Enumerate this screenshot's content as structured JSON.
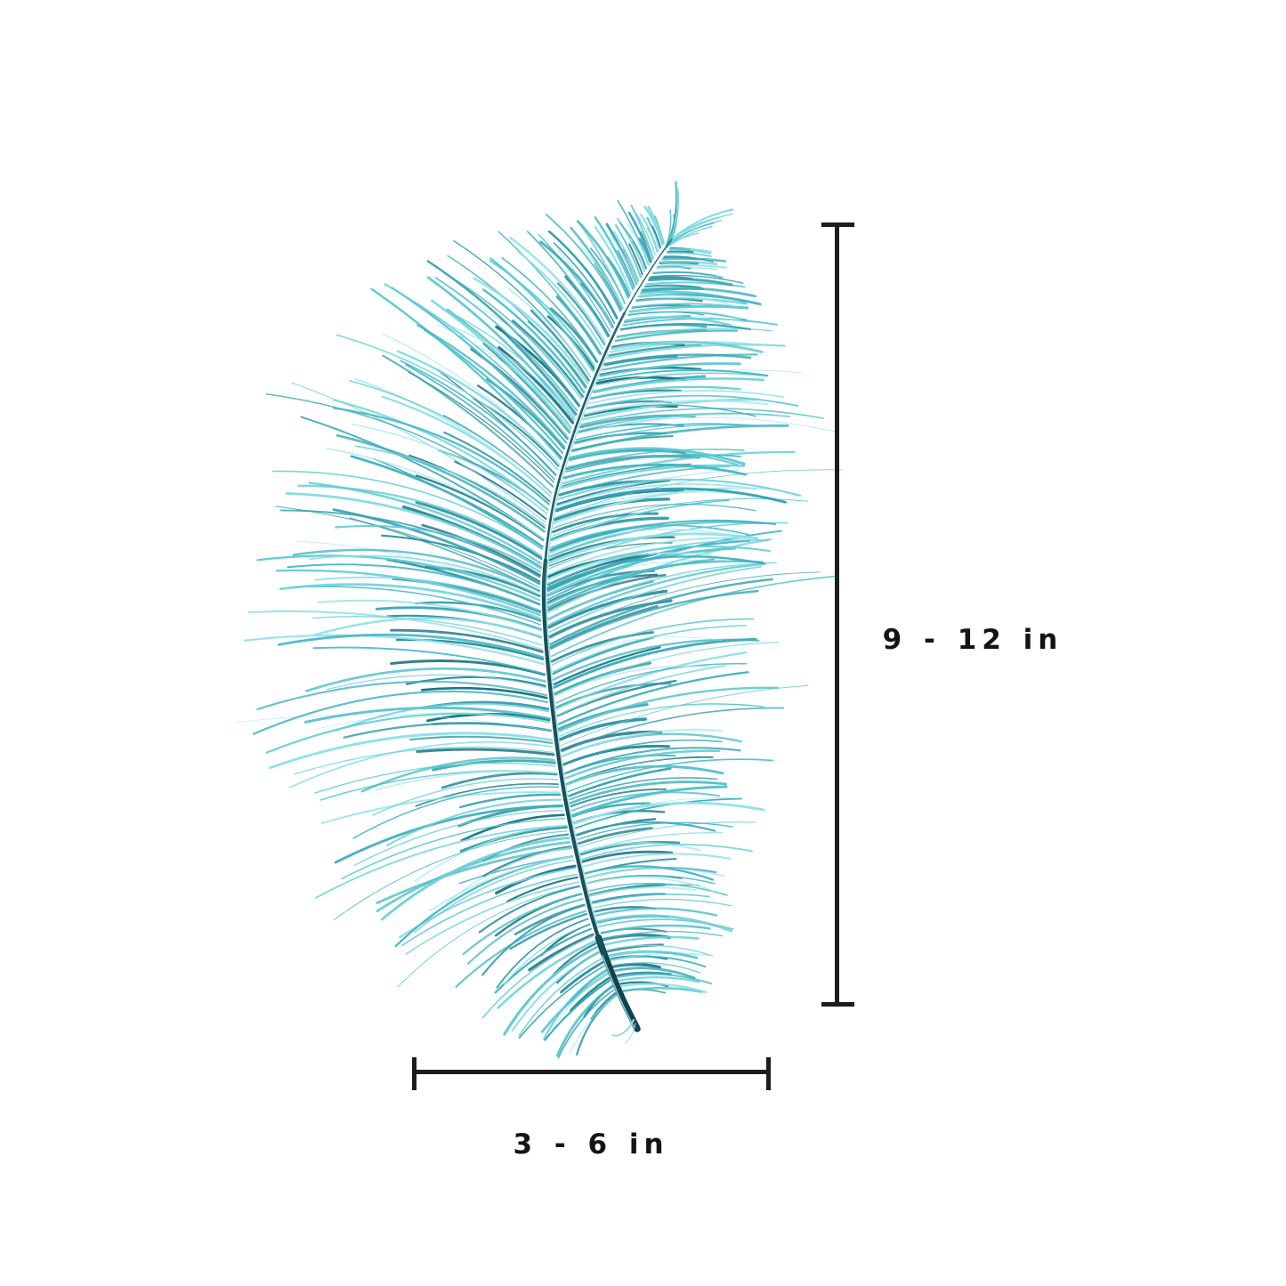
{
  "page": {
    "background_color": "#ffffff"
  },
  "feather": {
    "subject": "Turquoise ostrich feather plume photographed on white background",
    "palette": {
      "outer": [
        "#4fbfca",
        "#5bc8d2",
        "#6ad0d8",
        "#3fb0bd",
        "#79d8de",
        "#35a2b0",
        "#8de0e6",
        "#46b9c4"
      ],
      "inner": [
        "#2b8e9c",
        "#27828f",
        "#3399a7",
        "#1f7583",
        "#3aa5b2"
      ],
      "accent": "#a5e7ec",
      "core_shadow": "#27828f",
      "soft_highlight": "#84dbe1",
      "gradient_top": "#66cfd7",
      "gradient_mid": "#44b2bf",
      "gradient_bottom": "#2e93a2",
      "rachis_dark": "#10444d",
      "rachis_mid": "#16525c",
      "rachis_upper": "#1d606b",
      "rachis_tip": "#256e7a",
      "rachis_highlight": "#7fd0d8",
      "tip_wisp": "#9adbe2"
    }
  },
  "measurements": {
    "line_color": "#1d1d1d",
    "text_color": "#141414",
    "height_label": "9 - 12 in",
    "width_label": "3 - 6 in",
    "height_value_inches": "9-12",
    "width_value_inches": "3-6",
    "unit": "in"
  }
}
